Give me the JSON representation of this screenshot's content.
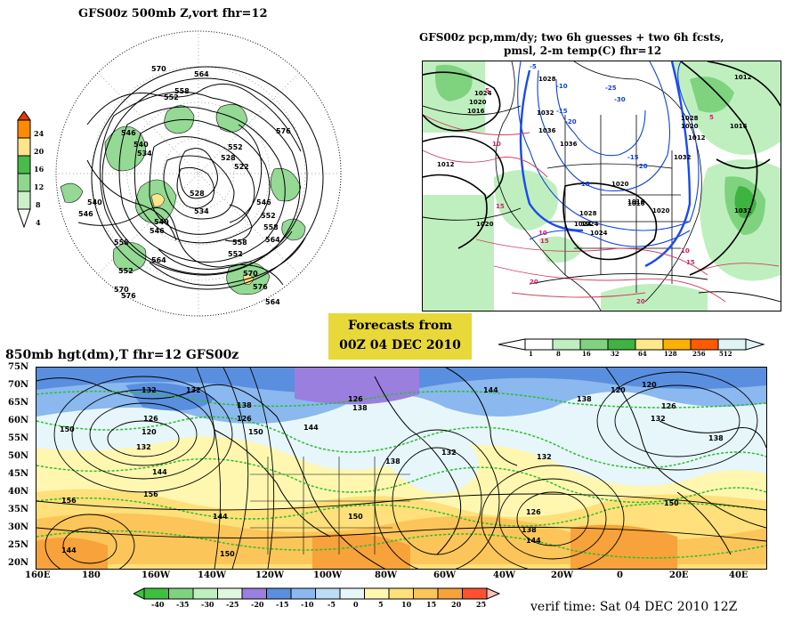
{
  "panel_500mb": {
    "title": "GFS00z   500mb  Z,vort     fhr=12",
    "colorbar_ticks": [
      "24",
      "20",
      "16",
      "12",
      "8",
      "4"
    ],
    "contour_labels": [
      "570",
      "564",
      "558",
      "552",
      "546",
      "540",
      "534",
      "528",
      "522",
      "546",
      "552",
      "558",
      "564",
      "570",
      "576",
      "576",
      "552",
      "558",
      "564",
      "546",
      "540",
      "528",
      "534",
      "576",
      "570",
      "564",
      "558",
      "552",
      "546",
      "540",
      "552"
    ]
  },
  "panel_precip": {
    "title_line1": "GFS00z pcp,mm/dy; two 6h guesses + two 6h fcsts,",
    "title_line2": "pmsl, 2-m temp(C)   fhr=12",
    "contour_labels": [
      "1024",
      "1020",
      "1016",
      "1012",
      "1028",
      "1032",
      "1036",
      "1024",
      "1020",
      "1016",
      "1012",
      "1028",
      "1032",
      "1020",
      "1016",
      "1024",
      "1028",
      "1036",
      "1032",
      "1020",
      "1012",
      "1016",
      "1020",
      "1024"
    ],
    "temp_labels": [
      "-10",
      "-15",
      "-20",
      "-25",
      "-30",
      "-5",
      "-10",
      "-15",
      "-20",
      "5",
      "10",
      "15",
      "20",
      "10",
      "15",
      "5",
      "10",
      "15",
      "20"
    ],
    "colorbar_ticks": [
      "1",
      "8",
      "16",
      "32",
      "64",
      "128",
      "256",
      "512"
    ],
    "colorbar_colors": [
      "#ffffff",
      "#bfefbf",
      "#7fd37f",
      "#3fb33f",
      "#ffe88a",
      "#ffb000",
      "#ff5a00",
      "#dff5f5"
    ]
  },
  "forecast_box": {
    "line1": "Forecasts from",
    "line2": "00Z 04 DEC 2010"
  },
  "panel_850mb": {
    "title": "850mb hgt(dm),T   fhr=12 GFS00z",
    "lat_labels": [
      "75N",
      "70N",
      "65N",
      "60N",
      "55N",
      "50N",
      "45N",
      "40N",
      "35N",
      "30N",
      "25N",
      "20N"
    ],
    "lon_labels": [
      "160E",
      "180",
      "160W",
      "140W",
      "120W",
      "100W",
      "80W",
      "60W",
      "40W",
      "20W",
      "0",
      "20E",
      "40E"
    ],
    "contour_labels": [
      "132",
      "126",
      "120",
      "126",
      "132",
      "138",
      "144",
      "150",
      "156",
      "132",
      "138",
      "144",
      "150",
      "120",
      "126",
      "132",
      "138",
      "144",
      "150",
      "156",
      "138",
      "144",
      "150",
      "126",
      "132",
      "138",
      "144",
      "150",
      "138",
      "132",
      "126",
      "120",
      "144"
    ],
    "colorbar_ticks": [
      "-40",
      "-35",
      "-30",
      "-25",
      "-20",
      "-15",
      "-10",
      "-5",
      "0",
      "5",
      "10",
      "15",
      "20",
      "25"
    ],
    "colorbar_colors": [
      "#3fbf3f",
      "#7fd37f",
      "#bfefbf",
      "#e0f7e0",
      "#9a7fdf",
      "#5a8fdf",
      "#8ab8ef",
      "#bcdcf5",
      "#e6f6fa",
      "#fff7b0",
      "#ffe07a",
      "#fcc55a",
      "#f7a23a",
      "#ff5030",
      "#ffc0c0"
    ],
    "verif_time": "verif time: Sat 04 DEC 2010 12Z"
  }
}
